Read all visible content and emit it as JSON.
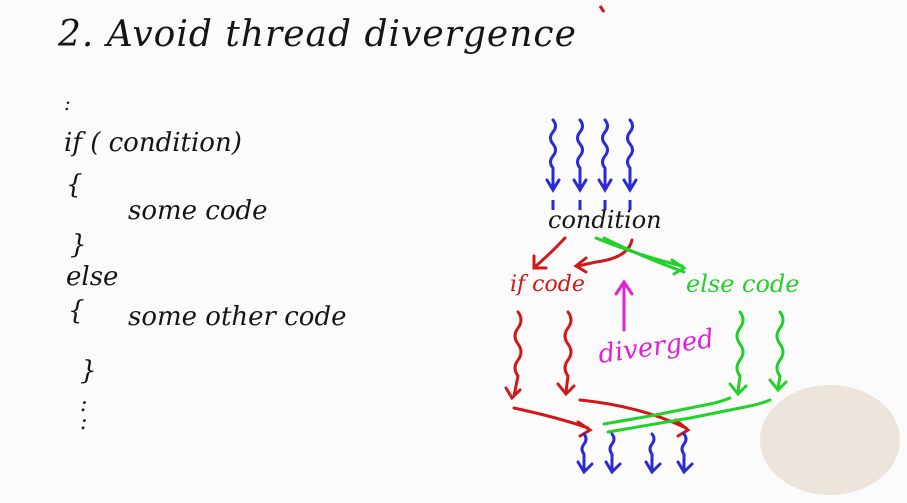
{
  "title": "2. Avoid thread divergence",
  "code": {
    "dots_top": ":",
    "if_line": "if  ( condition)",
    "open1": "{",
    "body1": "some  code",
    "close1": "}",
    "else_line": "else",
    "open2": "{",
    "body2": "some  other code",
    "close2": "}",
    "dots_bottom": ":"
  },
  "diagram": {
    "condition": "condition",
    "if_code": "if code",
    "else_code": "else code",
    "diverged": "diverged"
  },
  "colors": {
    "thread_blue": "#2a2ad8",
    "if_red": "#d01818",
    "else_green": "#22d12a",
    "diverged_magenta": "#e020d8",
    "ink": "#151515"
  }
}
